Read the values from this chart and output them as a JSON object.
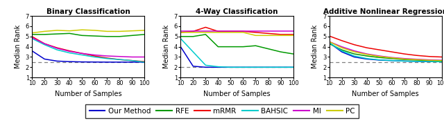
{
  "x": [
    10,
    20,
    30,
    40,
    50,
    60,
    70,
    80,
    90,
    100
  ],
  "titles": [
    "Binary Classification",
    "4-Way Classification",
    "Additive Nonlinear Regression"
  ],
  "xlabel": "Number of Samples",
  "ylabel": "Median Rank",
  "ylim": [
    1,
    7
  ],
  "yticks": [
    1,
    2,
    3,
    4,
    5,
    6,
    7
  ],
  "colors": {
    "Our Method": "#0000cc",
    "RFE": "#009900",
    "mRMR": "#ee0000",
    "BAHSIC": "#00cccc",
    "MI": "#cc00cc",
    "PC": "#cccc00"
  },
  "dashed_line": {
    "binary": 2.5,
    "fourway": 2.0,
    "additive": 2.5
  },
  "binary": {
    "Our Method": [
      3.6,
      2.8,
      2.6,
      2.55,
      2.52,
      2.51,
      2.5,
      2.5,
      2.5,
      2.5
    ],
    "RFE": [
      5.2,
      5.2,
      5.25,
      5.3,
      5.1,
      5.05,
      5.0,
      5.0,
      5.1,
      5.2
    ],
    "mRMR": [
      5.0,
      4.3,
      3.9,
      3.6,
      3.35,
      3.1,
      2.9,
      2.75,
      2.65,
      2.55
    ],
    "BAHSIC": [
      4.8,
      4.2,
      3.7,
      3.4,
      3.2,
      3.0,
      2.85,
      2.75,
      2.65,
      2.5
    ],
    "MI": [
      4.9,
      4.3,
      3.85,
      3.55,
      3.35,
      3.2,
      3.1,
      3.05,
      3.0,
      3.0
    ],
    "PC": [
      5.35,
      5.5,
      5.6,
      5.55,
      5.65,
      5.6,
      5.5,
      5.5,
      5.55,
      5.6
    ]
  },
  "fourway": {
    "Our Method": [
      4.0,
      2.1,
      2.0,
      2.0,
      2.0,
      2.0,
      2.0,
      2.0,
      2.0,
      2.0
    ],
    "RFE": [
      5.0,
      5.0,
      5.2,
      4.0,
      4.0,
      4.0,
      4.1,
      3.8,
      3.5,
      3.3
    ],
    "mRMR": [
      5.4,
      5.5,
      5.9,
      5.5,
      5.5,
      5.5,
      5.4,
      5.3,
      5.2,
      5.2
    ],
    "BAHSIC": [
      4.8,
      3.5,
      2.2,
      2.05,
      2.0,
      2.0,
      2.0,
      2.0,
      2.0,
      2.0
    ],
    "MI": [
      5.5,
      5.5,
      5.5,
      5.5,
      5.5,
      5.5,
      5.5,
      5.5,
      5.5,
      5.5
    ],
    "PC": [
      5.4,
      5.4,
      5.4,
      5.4,
      5.4,
      5.4,
      5.1,
      5.1,
      5.1,
      5.1
    ]
  },
  "additive": {
    "Our Method": [
      4.4,
      3.5,
      3.0,
      2.8,
      2.7,
      2.65,
      2.6,
      2.58,
      2.56,
      2.55
    ],
    "RFE": [
      4.3,
      3.7,
      3.3,
      3.1,
      2.95,
      2.85,
      2.75,
      2.7,
      2.65,
      2.6
    ],
    "mRMR": [
      5.05,
      4.6,
      4.2,
      3.9,
      3.7,
      3.5,
      3.3,
      3.15,
      3.05,
      3.0
    ],
    "BAHSIC": [
      4.4,
      3.6,
      3.1,
      2.85,
      2.72,
      2.65,
      2.6,
      2.57,
      2.55,
      2.53
    ],
    "MI": [
      4.5,
      4.0,
      3.6,
      3.3,
      3.1,
      2.95,
      2.85,
      2.78,
      2.72,
      2.68
    ],
    "PC": [
      4.5,
      3.9,
      3.5,
      3.25,
      3.05,
      2.92,
      2.8,
      2.74,
      2.68,
      2.65
    ]
  },
  "legend_order": [
    "Our Method",
    "RFE",
    "mRMR",
    "BAHSIC",
    "MI",
    "PC"
  ]
}
